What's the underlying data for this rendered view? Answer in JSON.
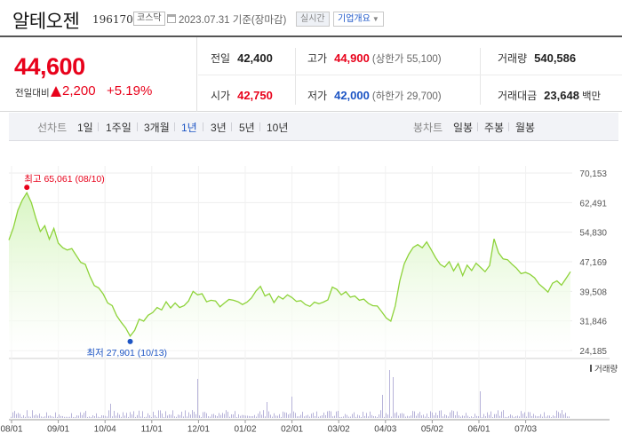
{
  "header": {
    "company_name": "알테오젠",
    "code": "196170",
    "market": "코스닥",
    "date_text": "2023.07.31 기준(장마감)",
    "realtime_label": "실시간",
    "overview_label": "기업개요"
  },
  "price": {
    "current": "44,600",
    "prev_label": "전일대비",
    "change": "2,200",
    "change_pct": "+5.19%",
    "prev_close_label": "전일",
    "prev_close": "42,400",
    "high_label": "고가",
    "high": "44,900",
    "upper_limit": "(상한가 55,100)",
    "volume_label": "거래량",
    "volume": "540,586",
    "open_label": "시가",
    "open": "42,750",
    "low_label": "저가",
    "low": "42,000",
    "lower_limit": "(하한가 29,700)",
    "amount_label": "거래대금",
    "amount": "23,648",
    "amount_unit": "백만"
  },
  "tabs": {
    "line_label": "선차트",
    "periods": [
      "1일",
      "1주일",
      "3개월",
      "1년",
      "3년",
      "5년",
      "10년"
    ],
    "active_period": "1년",
    "candle_label": "봉차트",
    "candles": [
      "일봉",
      "주봉",
      "월봉"
    ]
  },
  "colors": {
    "up": "#e8021b",
    "down": "#1d55c4",
    "line": "#8ed33a",
    "fill_top": "#d8f5c2",
    "volume_bar": "#b7b3d9"
  },
  "chart_data": {
    "type": "area",
    "y_ticks": [
      "70,153",
      "62,491",
      "54,830",
      "47,169",
      "39,508",
      "31,846",
      "24,185"
    ],
    "ylim": [
      24185,
      70153
    ],
    "x_ticks": [
      "08/01",
      "09/01",
      "10/04",
      "11/01",
      "12/01",
      "01/02",
      "02/01",
      "03/02",
      "04/03",
      "05/02",
      "06/01",
      "07/03"
    ],
    "max_label": "최고 65,061 (08/10)",
    "max_value": 65061,
    "min_label": "최저 27,901 (10/13)",
    "min_value": 27901,
    "volume_label": "거래량",
    "grid": true,
    "values": [
      52800,
      56000,
      60500,
      63200,
      65061,
      62500,
      58500,
      55000,
      56500,
      53000,
      55800,
      52000,
      50800,
      50200,
      50600,
      48800,
      47000,
      46500,
      43500,
      41000,
      40400,
      38800,
      36500,
      35800,
      33200,
      31500,
      30000,
      27901,
      29400,
      32300,
      31800,
      33300,
      34000,
      35300,
      34700,
      36800,
      35200,
      36500,
      35300,
      35800,
      37000,
      39500,
      38600,
      38900,
      36800,
      37200,
      37000,
      35500,
      36500,
      37400,
      37200,
      36800,
      36100,
      36700,
      37800,
      39600,
      40800,
      38300,
      38900,
      36600,
      38200,
      37500,
      38600,
      37900,
      36900,
      37100,
      36100,
      35600,
      36700,
      36300,
      36700,
      37300,
      40600,
      40000,
      38600,
      39400,
      38000,
      38300,
      37200,
      37500,
      36400,
      35800,
      35700,
      34200,
      32600,
      31800,
      35700,
      42200,
      46600,
      49100,
      50900,
      51600,
      50800,
      52300,
      50300,
      48200,
      46500,
      45800,
      47200,
      44800,
      46700,
      43600,
      46300,
      44900,
      46800,
      45700,
      44600,
      46200,
      53100,
      49500,
      47900,
      47700,
      46500,
      45500,
      44100,
      44400,
      43900,
      43000,
      41400,
      40400,
      39300,
      41600,
      42200,
      41100,
      42800,
      44600
    ]
  }
}
